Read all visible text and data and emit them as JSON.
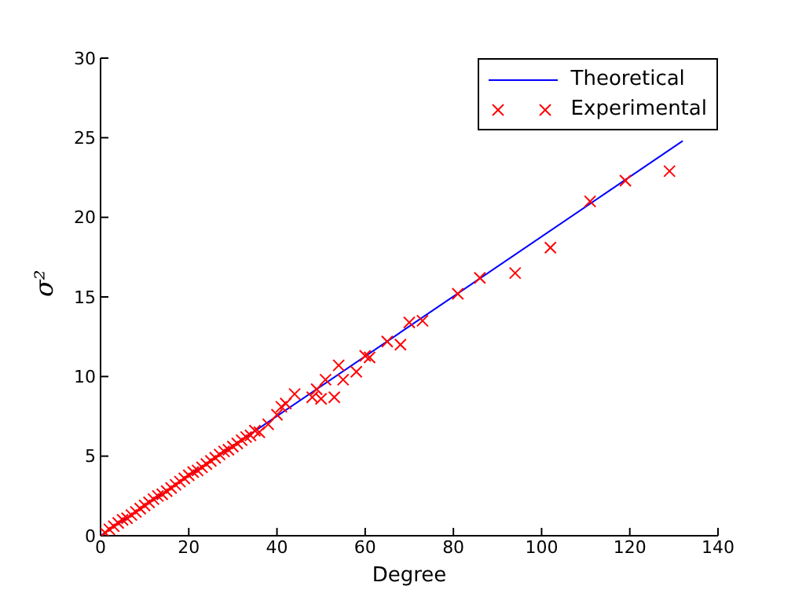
{
  "chart_data": {
    "type": "scatter",
    "xlabel": "Degree",
    "ylabel": "σ²",
    "xlim": [
      0,
      140
    ],
    "ylim": [
      0,
      30
    ],
    "xticks": [
      0,
      20,
      40,
      60,
      80,
      100,
      120,
      140
    ],
    "yticks": [
      0,
      5,
      10,
      15,
      20,
      25,
      30
    ],
    "grid": false,
    "legend": "top right",
    "series": [
      {
        "name": "Theoretical",
        "type": "line",
        "color": "#0000ff",
        "marker": "none",
        "line_style": "solid",
        "x": [
          0,
          132
        ],
        "values": [
          0,
          24.8
        ]
      },
      {
        "name": "Experimental",
        "color": "#ff0000",
        "marker": "cross",
        "x": [
          1,
          2,
          3,
          4,
          5,
          6,
          7,
          8,
          9,
          10,
          11,
          12,
          13,
          14,
          15,
          16,
          17,
          18,
          19,
          20,
          21,
          22,
          23,
          24,
          25,
          26,
          27,
          28,
          29,
          30,
          31,
          32,
          33,
          34,
          35,
          36,
          38,
          40,
          41,
          42,
          44,
          48,
          49,
          50,
          51,
          53,
          54,
          55,
          58,
          60,
          61,
          65,
          68,
          70,
          73,
          81,
          86,
          94,
          102,
          111,
          119,
          129
        ],
        "values": [
          0.2,
          0.4,
          0.6,
          0.8,
          1.0,
          1.1,
          1.3,
          1.5,
          1.7,
          1.9,
          2.1,
          2.3,
          2.5,
          2.6,
          2.8,
          3.0,
          3.2,
          3.4,
          3.6,
          3.8,
          4.0,
          4.1,
          4.3,
          4.5,
          4.7,
          4.9,
          5.1,
          5.3,
          5.4,
          5.6,
          5.8,
          6.0,
          6.2,
          6.3,
          6.6,
          6.5,
          7.0,
          7.6,
          8.1,
          8.3,
          8.9,
          8.7,
          9.2,
          8.6,
          9.8,
          8.7,
          10.7,
          9.8,
          10.3,
          11.3,
          11.2,
          12.2,
          12.0,
          13.4,
          13.5,
          15.2,
          16.2,
          16.5,
          18.1,
          21.0,
          22.3,
          22.9
        ]
      }
    ]
  }
}
